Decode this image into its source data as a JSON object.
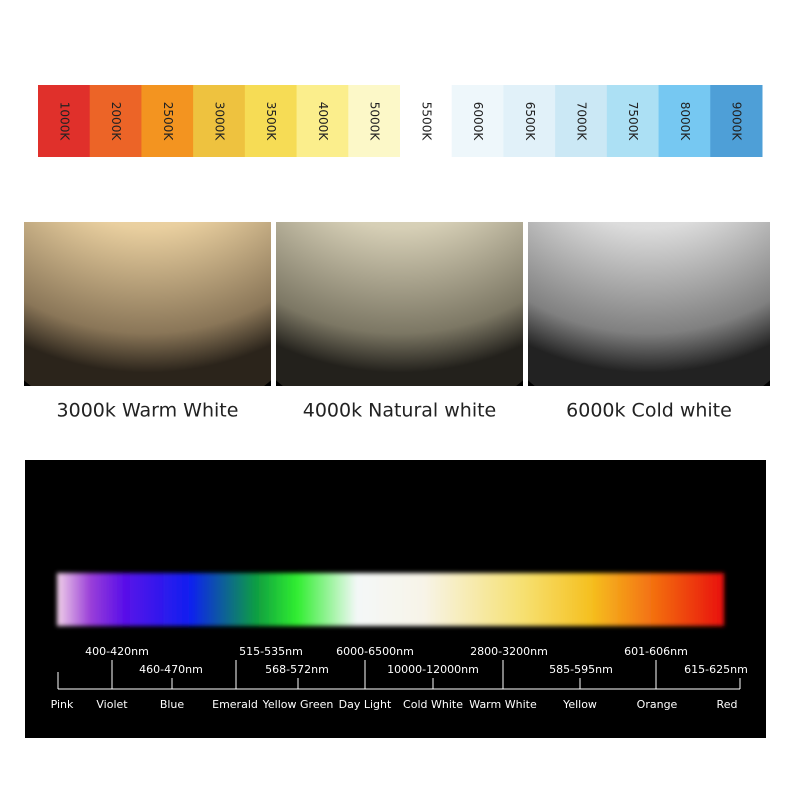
{
  "temperature_strip": [
    {
      "label": "1000K",
      "color": "#e0302b"
    },
    {
      "label": "2000K",
      "color": "#ec6427"
    },
    {
      "label": "2500K",
      "color": "#f39420"
    },
    {
      "label": "3000K",
      "color": "#eec23f"
    },
    {
      "label": "3500K",
      "color": "#f6dc55"
    },
    {
      "label": "4000K",
      "color": "#fbee8c"
    },
    {
      "label": "5000K",
      "color": "#fcf8c8"
    },
    {
      "label": "5500K",
      "color": "#ffffff"
    },
    {
      "label": "6000K",
      "color": "#eef7fb"
    },
    {
      "label": "6500K",
      "color": "#e1f1f9"
    },
    {
      "label": "7000K",
      "color": "#cbe8f5"
    },
    {
      "label": "7500K",
      "color": "#ace0f4"
    },
    {
      "label": "8000K",
      "color": "#76c8f2"
    },
    {
      "label": "9000K",
      "color": "#4e9fd7"
    }
  ],
  "photos": [
    {
      "caption": "3000k Warm White"
    },
    {
      "caption": "4000k Natural white"
    },
    {
      "caption": "6000k Cold white"
    }
  ],
  "spectrum": {
    "wavelengths_upper": [
      "400-420nm",
      "515-535nm",
      "6000-6500nm",
      "2800-3200nm",
      "601-606nm"
    ],
    "wavelengths_lower": [
      "460-470nm",
      "568-572nm",
      "10000-12000nm",
      "585-595nm",
      "615-625nm"
    ],
    "colors": [
      "Pink",
      "Violet",
      "Blue",
      "Emerald",
      "Yellow Green",
      "Day Light",
      "Cold White",
      "Warm White",
      "Yellow",
      "Orange",
      "Red"
    ]
  }
}
